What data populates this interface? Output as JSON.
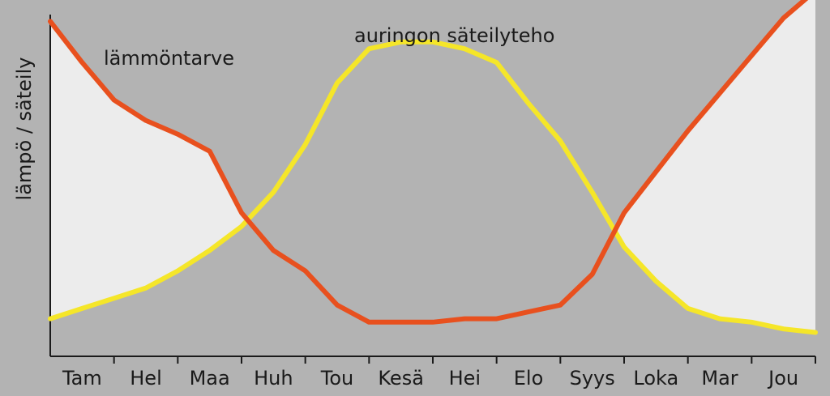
{
  "chart_data": {
    "type": "line",
    "title": "",
    "xlabel": "",
    "ylabel": "lämpö / säteily",
    "categories": [
      "Tam",
      "Hel",
      "Maa",
      "Huh",
      "Tou",
      "Kesä",
      "Hei",
      "Elo",
      "Syys",
      "Loka",
      "Mar",
      "Jou"
    ],
    "x": [
      0,
      0.5,
      1.0,
      1.5,
      2.0,
      2.5,
      3.0,
      3.5,
      4.0,
      4.5,
      5.0,
      5.5,
      6.0,
      6.5,
      7.0,
      7.5,
      8.0,
      8.5,
      9.0,
      9.5,
      10.0,
      10.5,
      11.0,
      11.5,
      12.0
    ],
    "ylim": [
      0,
      100
    ],
    "xlim": [
      0,
      12
    ],
    "grid": false,
    "legend": "none",
    "series": [
      {
        "name": "lämmöntarve",
        "color": "#e8501e",
        "values": [
          98,
          86,
          75,
          69,
          65,
          60,
          42,
          31,
          25,
          15,
          10,
          10,
          10,
          11,
          11,
          13,
          15,
          24,
          42,
          54,
          66,
          77,
          88,
          99,
          107
        ]
      },
      {
        "name": "auringon säteilyteho",
        "color": "#f5e629",
        "values": [
          11,
          14,
          17,
          20,
          25,
          31,
          38,
          48,
          62,
          80,
          90,
          92,
          92,
          90,
          86,
          74,
          63,
          48,
          32,
          22,
          14,
          11,
          10,
          8,
          7
        ]
      }
    ],
    "fill_color": "#ececec",
    "axis_color": "#1a1a1a"
  }
}
